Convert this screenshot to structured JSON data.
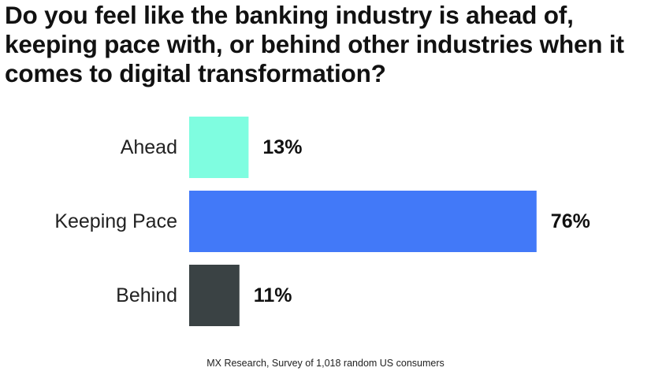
{
  "chart_data": {
    "type": "bar",
    "orientation": "horizontal",
    "title": "Do you feel like the banking industry is ahead of, keeping pace with, or behind other industries when it comes to digital transformation?",
    "categories": [
      "Ahead",
      "Keeping Pace",
      "Behind"
    ],
    "values": [
      13,
      76,
      11
    ],
    "value_labels": [
      "13%",
      "76%",
      "11%"
    ],
    "colors": [
      "#7ffde0",
      "#4279f8",
      "#3a4244"
    ],
    "xlim": [
      0,
      100
    ],
    "grid": false,
    "legend": "none",
    "source": "MX Research, Survey of 1,018 random US consumers"
  }
}
